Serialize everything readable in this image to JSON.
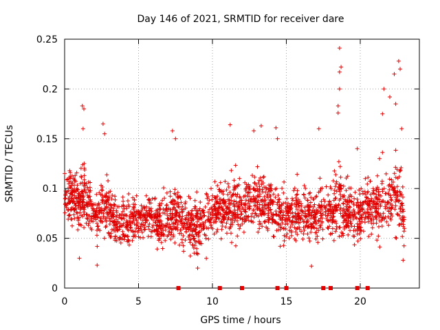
{
  "chart_data": {
    "type": "scatter",
    "title": "Day 146 of 2021, SRMTID for receiver dare",
    "xlabel": "GPS time / hours",
    "ylabel": "SRMTID / TECUs",
    "xlim": [
      0,
      24
    ],
    "ylim": [
      0,
      0.25
    ],
    "x_ticks": [
      0,
      5,
      10,
      15,
      20
    ],
    "x_tick_labels": [
      "0",
      "5",
      "10",
      "15",
      "20"
    ],
    "y_ticks": [
      0,
      0.05,
      0.1,
      0.15,
      0.2,
      0.25
    ],
    "y_tick_labels": [
      "0",
      "0.05",
      "0.1",
      "0.15",
      "0.2",
      "0.25"
    ],
    "grid": true,
    "marker": "plus",
    "color": "#e00000",
    "background_density": [
      [
        0,
        0.095,
        0.02
      ],
      [
        0.5,
        0.09,
        0.025
      ],
      [
        1,
        0.085,
        0.025
      ],
      [
        1.3,
        0.1,
        0.03
      ],
      [
        2,
        0.07,
        0.02
      ],
      [
        2.5,
        0.08,
        0.025
      ],
      [
        3,
        0.075,
        0.025
      ],
      [
        3.5,
        0.065,
        0.02
      ],
      [
        4,
        0.065,
        0.02
      ],
      [
        4.5,
        0.07,
        0.02
      ],
      [
        5,
        0.07,
        0.02
      ],
      [
        5.5,
        0.075,
        0.02
      ],
      [
        6,
        0.07,
        0.02
      ],
      [
        6.5,
        0.065,
        0.02
      ],
      [
        7,
        0.07,
        0.025
      ],
      [
        7.5,
        0.075,
        0.025
      ],
      [
        8,
        0.065,
        0.025
      ],
      [
        8.5,
        0.065,
        0.025
      ],
      [
        9,
        0.06,
        0.025
      ],
      [
        9.5,
        0.065,
        0.025
      ],
      [
        10,
        0.075,
        0.025
      ],
      [
        10.5,
        0.08,
        0.025
      ],
      [
        11,
        0.075,
        0.025
      ],
      [
        11.5,
        0.08,
        0.025
      ],
      [
        12,
        0.085,
        0.025
      ],
      [
        12.5,
        0.09,
        0.025
      ],
      [
        13,
        0.09,
        0.025
      ],
      [
        13.5,
        0.085,
        0.025
      ],
      [
        14,
        0.08,
        0.025
      ],
      [
        14.5,
        0.075,
        0.025
      ],
      [
        15,
        0.075,
        0.025
      ],
      [
        15.5,
        0.08,
        0.025
      ],
      [
        16,
        0.075,
        0.025
      ],
      [
        16.5,
        0.07,
        0.025
      ],
      [
        17,
        0.075,
        0.025
      ],
      [
        17.5,
        0.08,
        0.025
      ],
      [
        18,
        0.075,
        0.025
      ],
      [
        18.5,
        0.085,
        0.03
      ],
      [
        19,
        0.08,
        0.025
      ],
      [
        19.5,
        0.07,
        0.025
      ],
      [
        20,
        0.075,
        0.025
      ],
      [
        20.5,
        0.085,
        0.025
      ],
      [
        21,
        0.08,
        0.025
      ],
      [
        21.5,
        0.085,
        0.03
      ],
      [
        22,
        0.09,
        0.03
      ],
      [
        22.5,
        0.1,
        0.035
      ],
      [
        23,
        0.07,
        0.03
      ]
    ],
    "notable_points": [
      [
        1.2,
        0.183
      ],
      [
        1.3,
        0.18
      ],
      [
        1.25,
        0.16
      ],
      [
        2.6,
        0.165
      ],
      [
        2.7,
        0.155
      ],
      [
        7.3,
        0.158
      ],
      [
        7.5,
        0.15
      ],
      [
        11.2,
        0.164
      ],
      [
        12.8,
        0.158
      ],
      [
        13.3,
        0.163
      ],
      [
        14.3,
        0.161
      ],
      [
        14.4,
        0.15
      ],
      [
        17.2,
        0.16
      ],
      [
        18.6,
        0.241
      ],
      [
        18.7,
        0.222
      ],
      [
        18.6,
        0.217
      ],
      [
        18.6,
        0.2
      ],
      [
        18.5,
        0.183
      ],
      [
        18.5,
        0.176
      ],
      [
        19.8,
        0.14
      ],
      [
        21.3,
        0.13
      ],
      [
        21.6,
        0.2
      ],
      [
        21.5,
        0.175
      ],
      [
        22,
        0.192
      ],
      [
        22.3,
        0.215
      ],
      [
        22.6,
        0.228
      ],
      [
        22.7,
        0.22
      ],
      [
        22.4,
        0.185
      ],
      [
        22.8,
        0.16
      ],
      [
        2.2,
        0.023
      ],
      [
        1.0,
        0.03
      ],
      [
        9.0,
        0.02
      ],
      [
        16.7,
        0.022
      ],
      [
        22.9,
        0.028
      ]
    ],
    "zero_points_x": [
      7.7,
      10.5,
      12.0,
      14.4,
      15.0,
      17.5,
      18.0,
      19.8,
      20.5
    ]
  }
}
